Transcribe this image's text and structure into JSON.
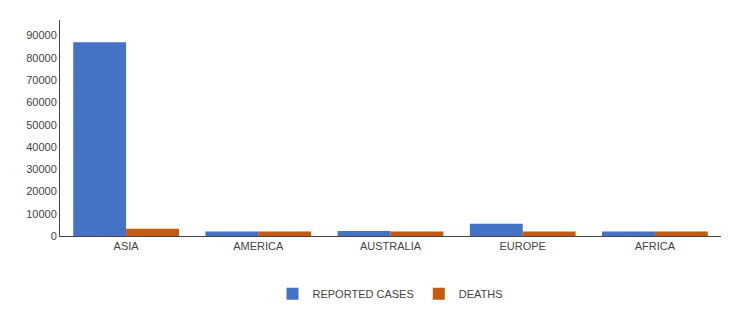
{
  "chart_data": {
    "type": "bar",
    "categories": [
      "ASIA",
      "AMERICA",
      "AUSTRALIA",
      "EUROPE",
      "AFRICA"
    ],
    "series": [
      {
        "name": "REPORTED CASES",
        "color": "#4472C4",
        "values": [
          87000,
          2000,
          2200,
          5500,
          2000
        ]
      },
      {
        "name": "DEATHS",
        "color": "#C55A11",
        "values": [
          3200,
          2000,
          2000,
          2000,
          2000
        ]
      }
    ],
    "ylim": [
      0,
      97000
    ],
    "yticks": [
      0,
      10000,
      20000,
      30000,
      40000,
      50000,
      60000,
      70000,
      80000,
      90000
    ],
    "grid": false,
    "legend": "bottom"
  }
}
